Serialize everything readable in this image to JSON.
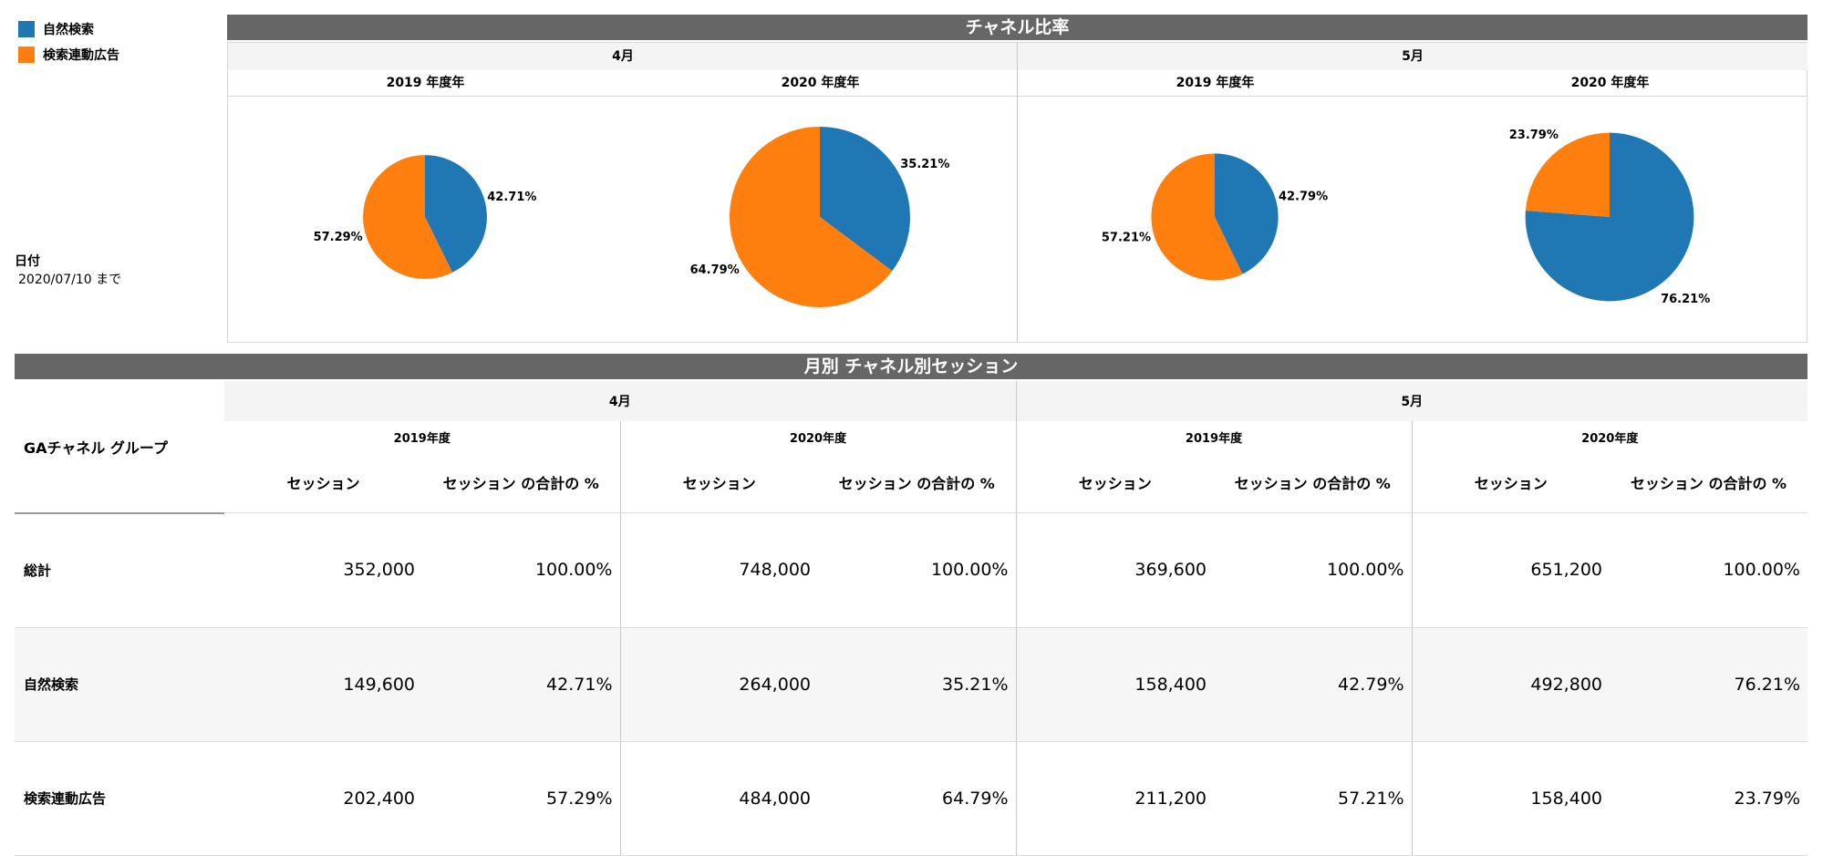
{
  "legend": [
    {
      "label": "自然検索",
      "color": "#1f77b4"
    },
    {
      "label": "検索連動広告",
      "color": "#ff7f0e"
    }
  ],
  "date_filter": {
    "label": "日付",
    "value": "2020/07/10 まで"
  },
  "chart_header": "チャネル比率",
  "table_header": "月別 チャネル別セッション",
  "colors": {
    "organic": "#1f77b4",
    "paid": "#ff7f0e",
    "header_bg": "#666666"
  },
  "chart_data": [
    {
      "type": "pie",
      "title": "4月",
      "subtitle": "2019 年度年",
      "categories": [
        "自然検索",
        "検索連動広告"
      ],
      "values": [
        42.71,
        57.29
      ],
      "labels": [
        "42.71%",
        "57.29%"
      ],
      "size_value": 352000
    },
    {
      "type": "pie",
      "title": "4月",
      "subtitle": "2020 年度年",
      "categories": [
        "自然検索",
        "検索連動広告"
      ],
      "values": [
        35.21,
        64.79
      ],
      "labels": [
        "35.21%",
        "64.79%"
      ],
      "size_value": 748000
    },
    {
      "type": "pie",
      "title": "5月",
      "subtitle": "2019 年度年",
      "categories": [
        "自然検索",
        "検索連動広告"
      ],
      "values": [
        42.79,
        57.21
      ],
      "labels": [
        "42.79%",
        "57.21%"
      ],
      "size_value": 369600
    },
    {
      "type": "pie",
      "title": "5月",
      "subtitle": "2020 年度年",
      "categories": [
        "自然検索",
        "検索連動広告"
      ],
      "values": [
        76.21,
        23.79
      ],
      "labels": [
        "76.21%",
        "23.79%"
      ],
      "size_value": 651200
    }
  ],
  "table": {
    "dimension_header": "GAチャネル グループ",
    "months": [
      "4月",
      "5月"
    ],
    "years": [
      "2019年度",
      "2020年度",
      "2019年度",
      "2020年度"
    ],
    "metric_headers": [
      "セッション",
      "セッション の合計の %"
    ],
    "rows": [
      {
        "label": "総計",
        "values": [
          "352,000",
          "100.00%",
          "748,000",
          "100.00%",
          "369,600",
          "100.00%",
          "651,200",
          "100.00%"
        ]
      },
      {
        "label": "自然検索",
        "values": [
          "149,600",
          "42.71%",
          "264,000",
          "35.21%",
          "158,400",
          "42.79%",
          "492,800",
          "76.21%"
        ]
      },
      {
        "label": "検索連動広告",
        "values": [
          "202,400",
          "57.29%",
          "484,000",
          "64.79%",
          "211,200",
          "57.21%",
          "158,400",
          "23.79%"
        ]
      }
    ]
  }
}
